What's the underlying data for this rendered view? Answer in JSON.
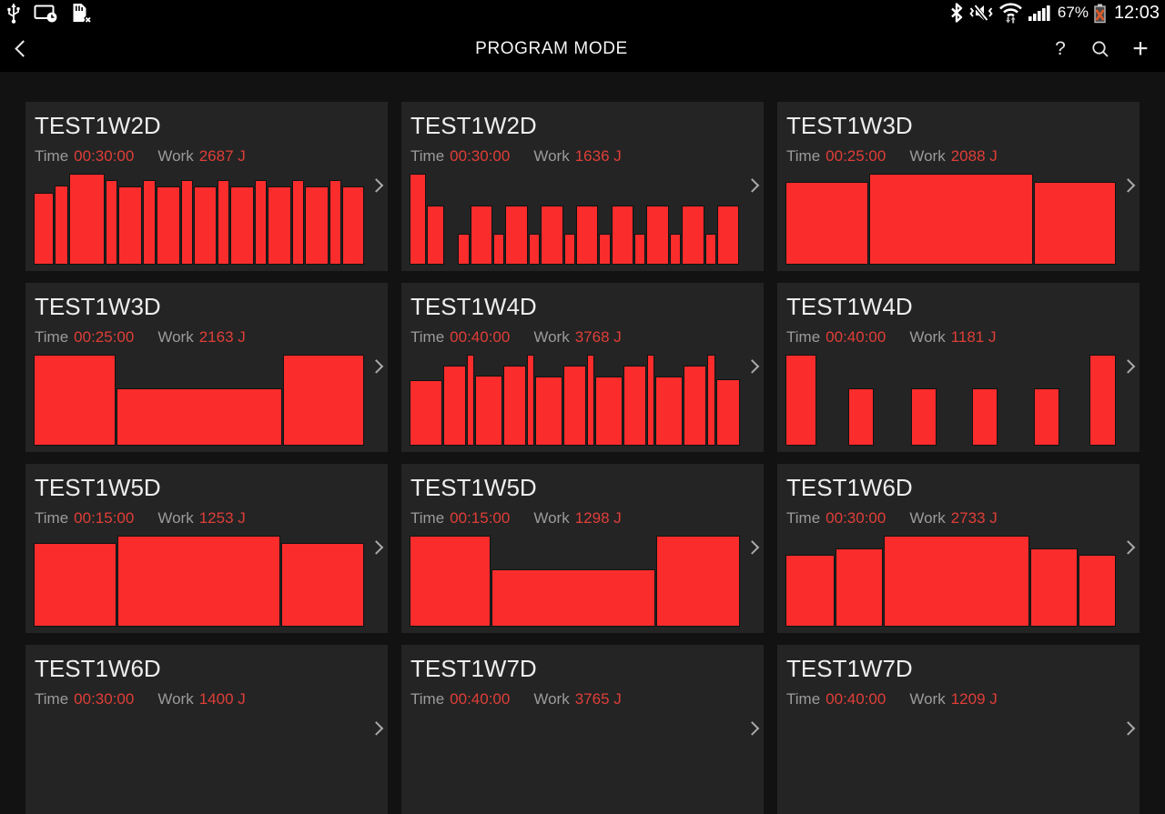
{
  "status_bar": {
    "battery_percent": "67%",
    "time": "12:03",
    "icons_left": [
      "usb-icon",
      "screen-share-clock-icon",
      "sim-removed-icon"
    ],
    "icons_right": [
      "bluetooth-icon",
      "vibrate-mute-icon",
      "wifi-icon",
      "signal-strength-icon",
      "battery-error-icon"
    ]
  },
  "action_bar": {
    "title": "PROGRAM MODE",
    "help_label": "?",
    "add_label": "+",
    "icons": [
      "back-icon",
      "help-icon",
      "search-icon",
      "add-icon"
    ]
  },
  "labels": {
    "time": "Time",
    "work": "Work"
  },
  "colors": {
    "bar_red": "#fb2c2c",
    "value_red": "#df3e38",
    "card_bg": "#242424",
    "page_bg": "#121212",
    "bar_black": "#000000"
  },
  "cards": [
    {
      "title": "TEST1W2D",
      "time": "00:30:00",
      "work": "2687 J",
      "bars": [
        [
          20,
          79
        ],
        [
          13,
          87
        ],
        [
          35,
          100
        ],
        [
          11,
          93
        ],
        [
          23,
          86
        ],
        [
          12,
          93
        ],
        [
          23,
          86
        ],
        [
          11,
          93
        ],
        [
          22,
          86
        ],
        [
          11,
          93
        ],
        [
          23,
          86
        ],
        [
          11,
          93
        ],
        [
          23,
          86
        ],
        [
          11,
          93
        ],
        [
          23,
          86
        ],
        [
          11,
          93
        ],
        [
          21,
          86
        ]
      ]
    },
    {
      "title": "TEST1W2D",
      "time": "00:30:00",
      "work": "1636 J",
      "bars": [
        [
          18,
          100
        ],
        [
          18,
          65
        ],
        [
          14,
          0
        ],
        [
          11,
          34
        ],
        [
          24,
          65
        ],
        [
          11,
          34
        ],
        [
          24,
          65
        ],
        [
          11,
          34
        ],
        [
          24,
          65
        ],
        [
          11,
          34
        ],
        [
          24,
          65
        ],
        [
          11,
          34
        ],
        [
          24,
          65
        ],
        [
          11,
          34
        ],
        [
          24,
          65
        ],
        [
          11,
          34
        ],
        [
          24,
          65
        ],
        [
          11,
          34
        ],
        [
          24,
          65
        ]
      ]
    },
    {
      "title": "TEST1W3D",
      "time": "00:25:00",
      "work": "2088 J",
      "bars": [
        [
          92,
          91
        ],
        [
          184,
          100
        ],
        [
          90,
          91
        ]
      ]
    },
    {
      "title": "TEST1W3D",
      "time": "00:25:00",
      "work": "2163 J",
      "bars": [
        [
          92,
          100
        ],
        [
          186,
          63
        ],
        [
          90,
          100
        ]
      ]
    },
    {
      "title": "TEST1W4D",
      "time": "00:40:00",
      "work": "3768 J",
      "bars": [
        [
          37,
          72
        ],
        [
          25,
          88
        ],
        [
          7,
          100
        ],
        [
          30,
          77
        ],
        [
          25,
          88
        ],
        [
          7,
          100
        ],
        [
          30,
          76
        ],
        [
          25,
          88
        ],
        [
          7,
          100
        ],
        [
          30,
          76
        ],
        [
          25,
          88
        ],
        [
          7,
          100
        ],
        [
          30,
          76
        ],
        [
          25,
          88
        ],
        [
          7,
          100
        ],
        [
          26,
          73
        ]
      ]
    },
    {
      "title": "TEST1W4D",
      "time": "00:40:00",
      "work": "1181 J",
      "bars": [
        [
          35,
          100
        ],
        [
          35,
          0
        ],
        [
          28,
          63
        ],
        [
          42,
          0
        ],
        [
          28,
          63
        ],
        [
          40,
          0
        ],
        [
          28,
          63
        ],
        [
          41,
          0
        ],
        [
          28,
          63
        ],
        [
          34,
          0
        ],
        [
          28,
          100
        ]
      ]
    },
    {
      "title": "TEST1W5D",
      "time": "00:15:00",
      "work": "1253 J",
      "bars": [
        [
          91,
          92
        ],
        [
          181,
          100
        ],
        [
          90,
          92
        ]
      ]
    },
    {
      "title": "TEST1W5D",
      "time": "00:15:00",
      "work": "1298 J",
      "bars": [
        [
          96,
          100
        ],
        [
          195,
          63
        ],
        [
          98,
          100
        ]
      ]
    },
    {
      "title": "TEST1W6D",
      "time": "00:30:00",
      "work": "2733 J",
      "bars": [
        [
          55,
          79
        ],
        [
          53,
          86
        ],
        [
          165,
          100
        ],
        [
          53,
          86
        ],
        [
          40,
          79
        ]
      ]
    },
    {
      "title": "TEST1W6D",
      "time": "00:30:00",
      "work": "1400 J",
      "bars": []
    },
    {
      "title": "TEST1W7D",
      "time": "00:40:00",
      "work": "3765 J",
      "bars": []
    },
    {
      "title": "TEST1W7D",
      "time": "00:40:00",
      "work": "1209 J",
      "bars": []
    }
  ]
}
